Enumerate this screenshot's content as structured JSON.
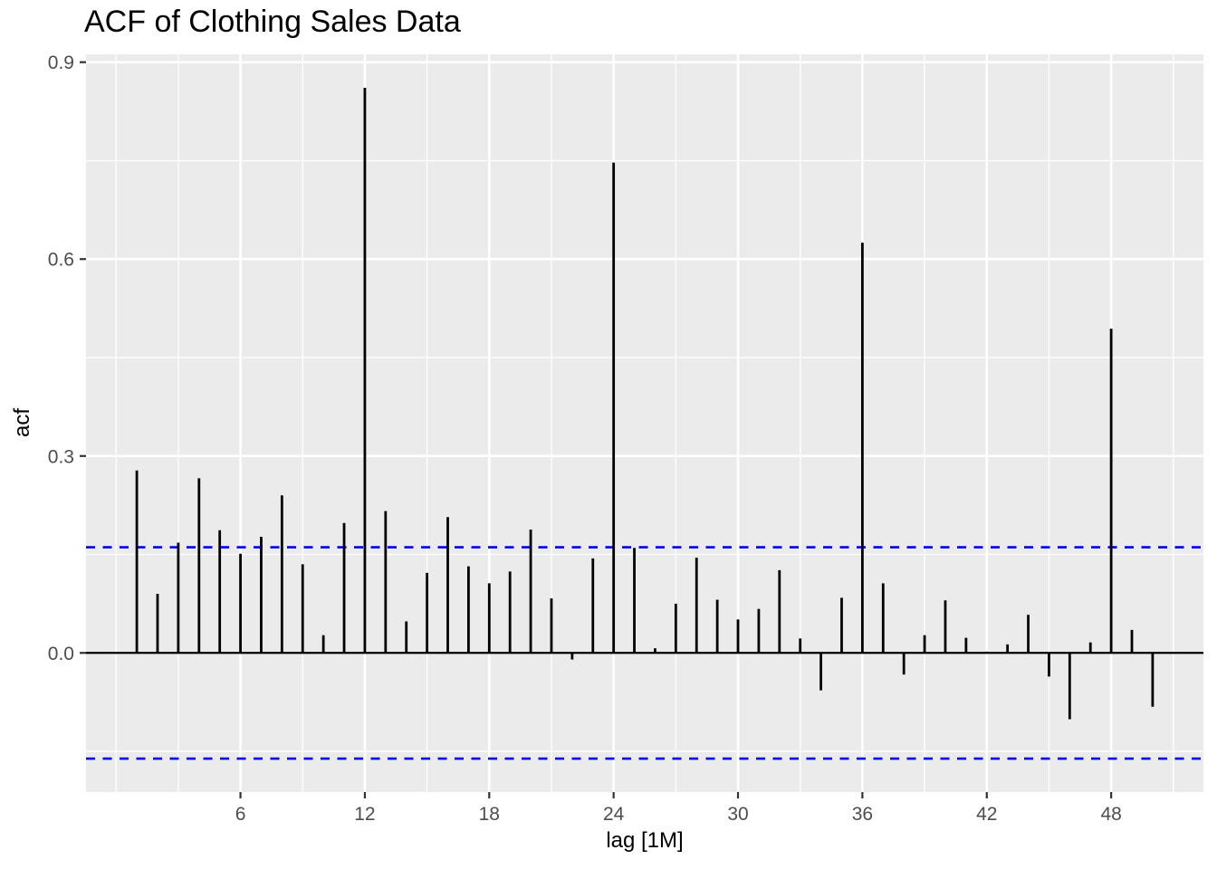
{
  "chart_data": {
    "type": "bar",
    "subtype": "acf-spike-plot",
    "title": "ACF of Clothing Sales Data",
    "xlabel": "lag [1M]",
    "ylabel": "acf",
    "x": [
      1,
      2,
      3,
      4,
      5,
      6,
      7,
      8,
      9,
      10,
      11,
      12,
      13,
      14,
      15,
      16,
      17,
      18,
      19,
      20,
      21,
      22,
      23,
      24,
      25,
      26,
      27,
      28,
      29,
      30,
      31,
      32,
      33,
      34,
      35,
      36,
      37,
      38,
      39,
      40,
      41,
      42,
      43,
      44,
      45,
      46,
      47,
      48,
      49,
      50
    ],
    "values": [
      0.278,
      0.09,
      0.168,
      0.266,
      0.187,
      0.151,
      0.177,
      0.24,
      0.135,
      0.027,
      0.198,
      0.861,
      0.216,
      0.048,
      0.122,
      0.207,
      0.132,
      0.106,
      0.124,
      0.188,
      0.083,
      -0.01,
      0.144,
      0.747,
      0.16,
      0.007,
      0.075,
      0.145,
      0.081,
      0.051,
      0.067,
      0.126,
      0.022,
      -0.057,
      0.084,
      0.625,
      0.106,
      -0.033,
      0.027,
      0.08,
      0.023,
      0.002,
      0.013,
      0.058,
      -0.036,
      -0.101,
      0.016,
      0.494,
      0.035,
      -0.082
    ],
    "confidence_bounds": [
      0.161,
      -0.161
    ],
    "confidence_line_style": "dashed",
    "xlim": [
      -1.45,
      52.45
    ],
    "ylim": [
      -0.212,
      0.912
    ],
    "x_major_ticks": [
      6,
      12,
      18,
      24,
      30,
      36,
      42,
      48
    ],
    "x_tick_labels": [
      "6",
      "12",
      "18",
      "24",
      "30",
      "36",
      "42",
      "48"
    ],
    "x_minor_gridlines": [
      0,
      3,
      9,
      15,
      21,
      27,
      33,
      39,
      45,
      51
    ],
    "y_major_ticks": [
      0,
      0.3,
      0.6,
      0.9
    ],
    "y_tick_labels": [
      "0.0",
      "0.3",
      "0.6",
      "0.9"
    ],
    "y_minor_gridlines": [
      -0.15,
      0.15,
      0.45,
      0.75
    ],
    "grid": true,
    "legend": "none",
    "colors": {
      "panel_background": "#EBEBEB",
      "gridline": "#FFFFFF",
      "bar": "#000000",
      "zero_line": "#000000",
      "confidence_line": "#0000EE",
      "tick_label": "#4D4D4D",
      "tick_mark": "#333333",
      "title_text": "#000000"
    }
  }
}
